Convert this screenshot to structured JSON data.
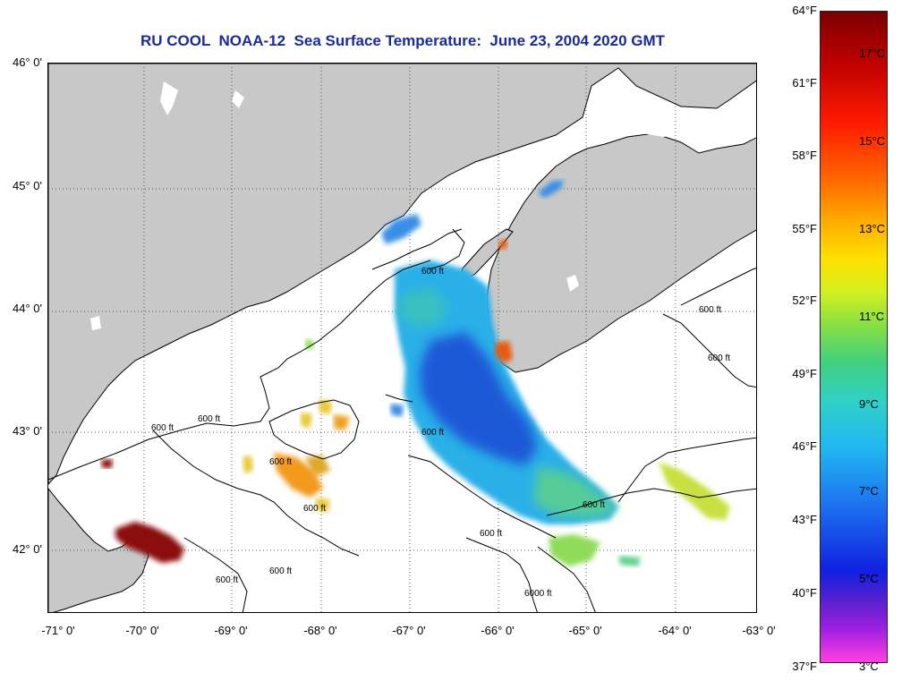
{
  "title": "RU COOL  NOAA-12  Sea Surface Temperature:  June 23, 2004 2020 GMT",
  "lat_labels": [
    "46° 0'",
    "45° 0'",
    "44° 0'",
    "43° 0'",
    "42° 0'"
  ],
  "lon_labels": [
    "-71° 0'",
    "-70° 0'",
    "-69° 0'",
    "-68° 0'",
    "-67° 0'",
    "-66° 0'",
    "-65° 0'",
    "-64° 0'",
    "-63° 0'"
  ],
  "colorbar": {
    "fahrenheit": [
      "64°F",
      "61°F",
      "58°F",
      "55°F",
      "52°F",
      "49°F",
      "46°F",
      "43°F",
      "40°F",
      "37°F"
    ],
    "celsius": [
      "17°C",
      "15°C",
      "13°C",
      "11°C",
      "9°C",
      "7°C",
      "5°C",
      "3°C"
    ]
  },
  "contour_label": "600 ft",
  "contour_label_deep": "6000 ft",
  "colors": {
    "title": "#1a2a9c",
    "land": "#c8c8c8",
    "sea": "#ffffff",
    "grid": "#555555"
  }
}
